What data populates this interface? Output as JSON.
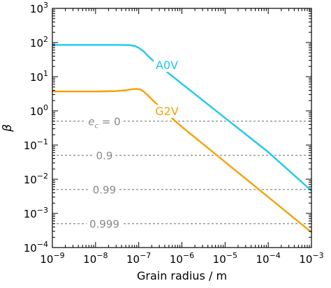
{
  "chart_data": {
    "type": "line",
    "xlabel": "Grain radius / m",
    "ylabel": "β",
    "xscale": "log",
    "yscale": "log",
    "xlim": [
      1e-09,
      0.001
    ],
    "ylim": [
      0.0001,
      1000.0
    ],
    "grid": false,
    "x_ticks": [
      {
        "value": 1e-09,
        "base": "10",
        "exp": "−9"
      },
      {
        "value": 1e-08,
        "base": "10",
        "exp": "−8"
      },
      {
        "value": 1e-07,
        "base": "10",
        "exp": "−7"
      },
      {
        "value": 1e-06,
        "base": "10",
        "exp": "−6"
      },
      {
        "value": 1e-05,
        "base": "10",
        "exp": "−5"
      },
      {
        "value": 0.0001,
        "base": "10",
        "exp": "−4"
      },
      {
        "value": 0.001,
        "base": "10",
        "exp": "−3"
      }
    ],
    "y_ticks": [
      {
        "value": 0.0001,
        "base": "10",
        "exp": "−4"
      },
      {
        "value": 0.001,
        "base": "10",
        "exp": "−3"
      },
      {
        "value": 0.01,
        "base": "10",
        "exp": "−2"
      },
      {
        "value": 0.1,
        "base": "10",
        "exp": "−1"
      },
      {
        "value": 1.0,
        "base": "10",
        "exp": "0"
      },
      {
        "value": 10.0,
        "base": "10",
        "exp": "1"
      },
      {
        "value": 100.0,
        "base": "10",
        "exp": "2"
      },
      {
        "value": 1000.0,
        "base": "10",
        "exp": "3"
      }
    ],
    "series": [
      {
        "name": "A0V",
        "color": "#1ec8ee",
        "x": [
          1e-09,
          5e-09,
          1e-08,
          2e-08,
          4e-08,
          6e-08,
          8e-08,
          1e-07,
          1.3e-07,
          1.6e-07,
          2e-07,
          3e-07,
          4e-07,
          6e-07,
          1e-06,
          1e-05,
          0.0001,
          0.001
        ],
        "values": [
          85,
          85,
          85,
          85,
          85,
          84,
          80,
          70,
          55,
          42,
          32,
          21,
          15.5,
          10.4,
          6.2,
          0.62,
          0.062,
          0.0046
        ]
      },
      {
        "name": "G2V",
        "color": "#f5a000",
        "x": [
          1e-09,
          5e-09,
          1e-08,
          2e-08,
          3e-08,
          5e-08,
          7e-08,
          9e-08,
          1.1e-07,
          1.3e-07,
          1.6e-07,
          2e-07,
          3e-07,
          4e-07,
          6e-07,
          1e-06,
          1e-05,
          0.0001,
          0.001
        ],
        "values": [
          3.7,
          3.7,
          3.7,
          3.75,
          3.8,
          4.0,
          4.3,
          4.4,
          4.2,
          3.7,
          2.9,
          2.2,
          1.35,
          0.95,
          0.6,
          0.34,
          0.032,
          0.003,
          0.00028
        ]
      }
    ],
    "reference_lines": [
      {
        "y": 0.5,
        "label_main": "e",
        "label_sub": "c",
        "label_rest": " = 0",
        "label_x": 1.6e-08
      },
      {
        "y": 0.05,
        "label_main": "0.9",
        "label_sub": "",
        "label_rest": "",
        "label_x": 1.6e-08
      },
      {
        "y": 0.005,
        "label_main": "0.99",
        "label_sub": "",
        "label_rest": "",
        "label_x": 1.6e-08
      },
      {
        "y": 0.0005,
        "label_main": "0.999",
        "label_sub": "",
        "label_rest": "",
        "label_x": 1.6e-08
      }
    ],
    "reference_line_color": "#888888",
    "series_labels": [
      {
        "text": "A0V",
        "color": "#1ec8ee",
        "x": 4.5e-07,
        "y": 22
      },
      {
        "text": "G2V",
        "color": "#f5a000",
        "x": 4.5e-07,
        "y": 1.0
      }
    ]
  }
}
